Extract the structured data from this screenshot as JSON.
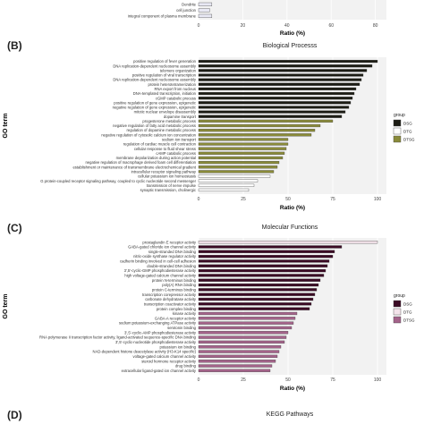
{
  "panels": {
    "b": {
      "letter": "(B)",
      "title": "Biological Processs"
    },
    "c": {
      "letter": "(C)",
      "title": "Molecular Functions"
    },
    "d": {
      "letter": "(D)",
      "title": "KEGG Pathways"
    }
  },
  "colors": {
    "B": {
      "DSG": "#1c1c14",
      "DTG": "#ffffff",
      "DTSG": "#8a8b3a"
    },
    "C": {
      "DSG": "#3b0a24",
      "DTG": "#f3e3ea",
      "DTSG": "#a4638a"
    }
  },
  "chart_data": [
    {
      "type": "bar",
      "panel": "A (partial)",
      "orientation": "horizontal",
      "categories": [
        "Dendrite",
        "cell junction",
        "integral component of plasma membrane"
      ],
      "values": [
        6,
        5,
        6
      ],
      "xlabel": "Ratio (%)",
      "xticks": [
        0,
        20,
        40,
        60,
        80
      ],
      "xlim": [
        0,
        85
      ]
    },
    {
      "type": "bar",
      "panel": "B",
      "orientation": "horizontal",
      "title": "Biological Processs",
      "xlabel": "Ratio (%)",
      "ylabel": "GO term",
      "xticks": [
        0,
        25,
        50,
        75,
        100
      ],
      "xlim": [
        0,
        105
      ],
      "legend": {
        "title": "group",
        "entries": [
          "DSG",
          "DTG",
          "DTSG"
        ],
        "placement": "right"
      },
      "categories": [
        "positive regulation of fever generation",
        "DNA replication-dependent nucleosome assembly",
        "telomere organization",
        "positive regulation of viral transcription",
        "DNA replication-dependent nucleosome assembly",
        "protein heterotetramerization",
        "RNA export from nucleus",
        "DNA-templated transcription, initiation",
        "cGMP catabolic process",
        "positive regulation of gene expression, epigenetic",
        "negative regulation of gene expression, epigenetic",
        "mitotic nuclear envelope disassembly",
        "dopamine transport",
        "progesterone metabolic process",
        "negative regulation of fatty acid metabolic process",
        "regulation of dopamine metabolic process",
        "negative regulation of cytosolic calcium ion concentration",
        "sodium ion transport",
        "regulation of cardiac muscle cell contraction",
        "cellular response to fluid shear stress",
        "cAMP catabolic process",
        "membrane depolarization during action potential",
        "negative regulation of macrophage derived foam cell differentiation",
        "establishment or maintenance of transmembrane electrochemical gradient",
        "intracellular receptor signaling pathway",
        "cellular potassium ion homeostasis",
        "G protein-coupled receptor signaling pathway, coupled to cyclic nucleotide second messenger",
        "transmission of nerve impulse",
        "synaptic transmission, cholinergic"
      ],
      "values": [
        100,
        97,
        94,
        92,
        91,
        90,
        88,
        87,
        86,
        85,
        84,
        82,
        80,
        75,
        68,
        65,
        63,
        50,
        50,
        49,
        48,
        47,
        45,
        44,
        42,
        40,
        33,
        31,
        28
      ],
      "groups": [
        "DSG",
        "DSG",
        "DSG",
        "DSG",
        "DSG",
        "DSG",
        "DSG",
        "DSG",
        "DSG",
        "DSG",
        "DSG",
        "DSG",
        "DSG",
        "DTSG",
        "DTSG",
        "DTSG",
        "DTSG",
        "DTSG",
        "DTSG",
        "DTSG",
        "DTSG",
        "DTSG",
        "DTSG",
        "DTSG",
        "DTSG",
        "DTG",
        "DTG",
        "DTG",
        "DTG"
      ]
    },
    {
      "type": "bar",
      "panel": "C",
      "orientation": "horizontal",
      "title": "Molecular Functions",
      "xlabel": "Ratio (%)",
      "ylabel": "GO term",
      "xticks": [
        0,
        25,
        50,
        75,
        100
      ],
      "xlim": [
        0,
        105
      ],
      "legend": {
        "title": "group",
        "entries": [
          "DSG",
          "DTG",
          "DTSG"
        ],
        "placement": "right"
      },
      "categories": [
        "prostaglandin E receptor activity",
        "GABA-gated chloride ion channel activity",
        "single-stranded DNA binding",
        "nitric-oxide synthase regulator activity",
        "cadherin binding involved in cell-cell adhesion",
        "double-stranded DNA binding",
        "3',5'-cyclic-GMP phosphodiesterase activity",
        "high voltage-gated calcium channel activity",
        "protein N-terminus binding",
        "poly(A) RNA binding",
        "protein C-terminus binding",
        "transcription corepressor activity",
        "carbonate dehydratase activity",
        "transcription coactivator activity",
        "protein complex binding",
        "kinase activity",
        "GABA-A receptor activity",
        "sodium:potassium-exchanging ATPase activity",
        "serotonin binding",
        "3',5'-cyclic-AMP phosphodiesterase activity",
        "RNA polymerase II transcription factor activity, ligand-activated sequence-specific DNA binding",
        "3',5'-cyclic-nucleotide phosphodiesterase activity",
        "potassium ion binding",
        "NAD-dependent histone deacetylase activity (H3-K14 specific)",
        "voltage-gated calcium channel activity",
        "steroid hormone receptor activity",
        "drug binding",
        "extracellular ligand-gated ion channel activity"
      ],
      "values": [
        100,
        80,
        76,
        75,
        73,
        72,
        71,
        70,
        68,
        67,
        66,
        65,
        64,
        63,
        62,
        55,
        54,
        53,
        52,
        50,
        49,
        48,
        46,
        45,
        44,
        43,
        41,
        40
      ],
      "groups": [
        "DTG",
        "DSG",
        "DSG",
        "DSG",
        "DSG",
        "DSG",
        "DSG",
        "DSG",
        "DSG",
        "DSG",
        "DSG",
        "DSG",
        "DSG",
        "DSG",
        "DSG",
        "DTSG",
        "DTSG",
        "DTSG",
        "DTSG",
        "DTSG",
        "DTSG",
        "DTSG",
        "DTSG",
        "DTSG",
        "DTSG",
        "DTSG",
        "DTSG",
        "DTSG"
      ]
    }
  ]
}
